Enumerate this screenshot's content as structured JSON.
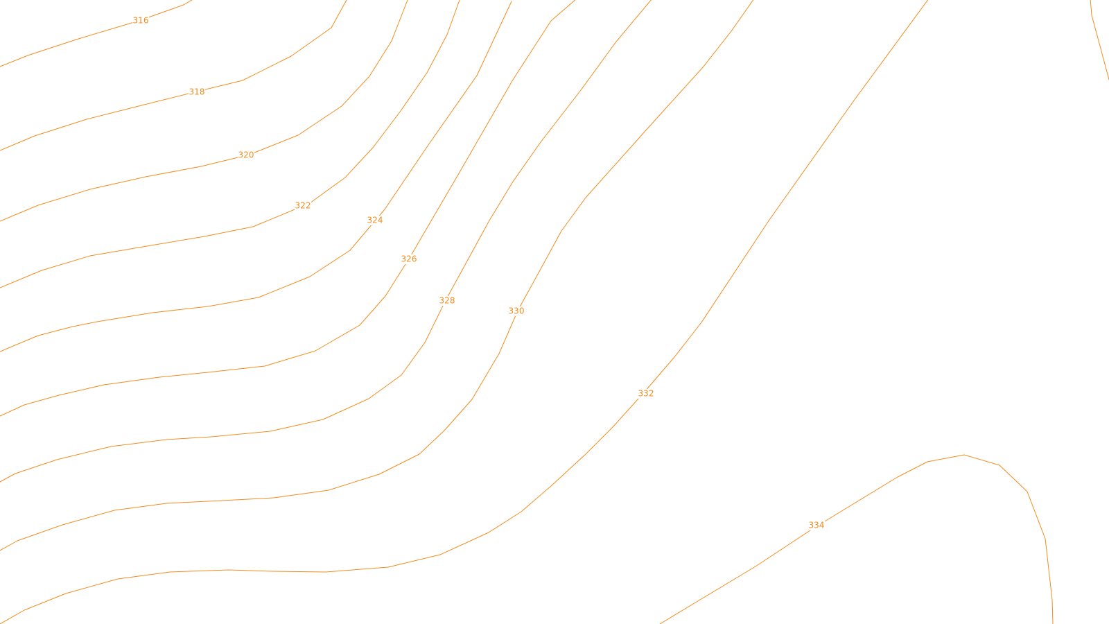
{
  "map": {
    "line_color": "#f28c1e",
    "background_color": "#ffffff",
    "contours": [
      {
        "elevation": "316"
      },
      {
        "elevation": "318"
      },
      {
        "elevation": "320"
      },
      {
        "elevation": "322"
      },
      {
        "elevation": "324"
      },
      {
        "elevation": "326"
      },
      {
        "elevation": "328"
      },
      {
        "elevation": "330"
      },
      {
        "elevation": "332"
      },
      {
        "elevation": "334"
      }
    ]
  }
}
